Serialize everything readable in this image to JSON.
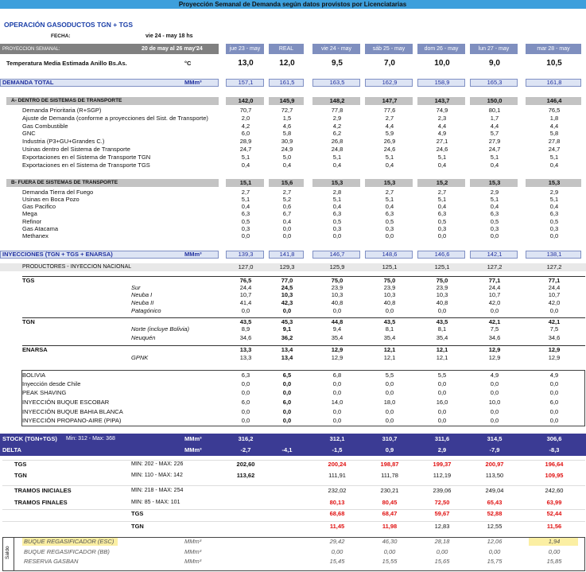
{
  "header": {
    "title": "Proyección Semanal de Demanda según datos provistos por Licenciatarias",
    "subtitle": "OPERACIÓN GASODUCTOS TGN + TGS",
    "fecha_label": "FECHA:",
    "fecha": "vie 24 - may 18 hs",
    "semana_label": "PROYECCION SEMANAL:",
    "semana": "20 de may al 26 may'24",
    "columns": [
      "jue 23 - may",
      "REAL",
      "vie 24 - may",
      "sáb 25 - may",
      "dom 26 - may",
      "lun 27 - may",
      "mar 28 - may"
    ],
    "saldo": "Saldo"
  },
  "rows": [
    {
      "label": "Temperatura Media Estimada Anillo Bs.As.",
      "unit": "°C",
      "cells": [
        "13,0",
        "12,0",
        "9,5",
        "7,0",
        "10,0",
        "9,0",
        "10,5"
      ]
    },
    {
      "label": "DEMANDA TOTAL",
      "unit": "MMm³",
      "cells": [
        "157,1",
        "161,5",
        "163,5",
        "162,9",
        "158,9",
        "165,3",
        "161,8"
      ]
    },
    {
      "label": "A- DENTRO DE SISTEMAS DE TRANSPORTE",
      "cells": [
        "142,0",
        "145,9",
        "148,2",
        "147,7",
        "143,7",
        "150,0",
        "146,4"
      ]
    },
    {
      "label": "Demanda Prioritaria (R+SGP)",
      "cells": [
        "70,7",
        "72,7",
        "77,8",
        "77,6",
        "74,9",
        "80,1",
        "76,5"
      ]
    },
    {
      "label": "Ajuste de Demanda (conforme a proyecciones del Sist. de Transporte)",
      "cells": [
        "2,0",
        "1,5",
        "2,9",
        "2,7",
        "2,3",
        "1,7",
        "1,8"
      ]
    },
    {
      "label": "Gas Combustible",
      "cells": [
        "4,2",
        "4,6",
        "4,2",
        "4,4",
        "4,4",
        "4,4",
        "4,4"
      ]
    },
    {
      "label": "GNC",
      "cells": [
        "6,0",
        "5,8",
        "6,2",
        "5,9",
        "4,9",
        "5,7",
        "5,8"
      ]
    },
    {
      "label": "Industria (P3+GU+Grandes C.)",
      "cells": [
        "28,9",
        "30,9",
        "26,8",
        "26,9",
        "27,1",
        "27,9",
        "27,8"
      ]
    },
    {
      "label": "Usinas dentro del Sistema de Transporte",
      "cells": [
        "24,7",
        "24,9",
        "24,8",
        "24,6",
        "24,6",
        "24,7",
        "24,7"
      ]
    },
    {
      "label": "Exportaciones en el Sistema de Transporte TGN",
      "cells": [
        "5,1",
        "5,0",
        "5,1",
        "5,1",
        "5,1",
        "5,1",
        "5,1"
      ]
    },
    {
      "label": "Exportaciones en el Sistema de Transporte TGS",
      "cells": [
        "0,4",
        "0,4",
        "0,4",
        "0,4",
        "0,4",
        "0,4",
        "0,4"
      ]
    },
    {
      "label": "B- FUERA DE SISTEMAS DE TRANSPORTE",
      "cells": [
        "15,1",
        "15,6",
        "15,3",
        "15,3",
        "15,2",
        "15,3",
        "15,3"
      ]
    },
    {
      "label": "Demanda Tierra del Fuego",
      "cells": [
        "2,7",
        "2,7",
        "2,8",
        "2,7",
        "2,7",
        "2,9",
        "2,9"
      ]
    },
    {
      "label": "Usinas en Boca Pozo",
      "cells": [
        "5,1",
        "5,2",
        "5,1",
        "5,1",
        "5,1",
        "5,1",
        "5,1"
      ]
    },
    {
      "label": "Gas Pacifico",
      "cells": [
        "0,4",
        "0,6",
        "0,4",
        "0,4",
        "0,4",
        "0,4",
        "0,4"
      ]
    },
    {
      "label": "Mega",
      "cells": [
        "6,3",
        "6,7",
        "6,3",
        "6,3",
        "6,3",
        "6,3",
        "6,3"
      ]
    },
    {
      "label": "Refinor",
      "cells": [
        "0,5",
        "0,4",
        "0,5",
        "0,5",
        "0,5",
        "0,5",
        "0,5"
      ]
    },
    {
      "label": "Gas Atacama",
      "cells": [
        "0,3",
        "0,0",
        "0,3",
        "0,3",
        "0,3",
        "0,3",
        "0,3"
      ]
    },
    {
      "label": "Methanex",
      "cells": [
        "0,0",
        "0,0",
        "0,0",
        "0,0",
        "0,0",
        "0,0",
        "0,0"
      ]
    },
    {
      "label": "INYECCIONES (TGN + TGS + ENARSA)",
      "unit": "MMm³",
      "cells": [
        "139,3",
        "141,8",
        "146,7",
        "148,6",
        "146,6",
        "142,1",
        "138,1"
      ]
    },
    {
      "label": "PRODUCTORES - INYECCION NACIONAL",
      "cells": [
        "127,0",
        "129,3",
        "125,9",
        "125,1",
        "125,1",
        "127,2",
        "127,2"
      ]
    },
    {
      "label": "TGS",
      "cells": [
        "76,5",
        "77,0",
        "75,0",
        "75,0",
        "75,0",
        "77,1",
        "77,1"
      ]
    },
    {
      "label": "Sur",
      "cells": [
        "24,4",
        "24,5",
        "23,9",
        "23,9",
        "23,9",
        "24,4",
        "24,4"
      ]
    },
    {
      "label": "Neuba I",
      "cells": [
        "10,7",
        "10,3",
        "10,3",
        "10,3",
        "10,3",
        "10,7",
        "10,7"
      ]
    },
    {
      "label": "Neuba II",
      "cells": [
        "41,4",
        "42,3",
        "40,8",
        "40,8",
        "40,8",
        "42,0",
        "42,0"
      ]
    },
    {
      "label": "Patagónico",
      "cells": [
        "0,0",
        "0,0",
        "0,0",
        "0,0",
        "0,0",
        "0,0",
        "0,0"
      ]
    },
    {
      "label": "TGN",
      "cells": [
        "43,5",
        "45,3",
        "44,8",
        "43,5",
        "43,5",
        "42,1",
        "42,1"
      ]
    },
    {
      "label": "Norte (incluye Bolivia)",
      "cells": [
        "8,9",
        "9,1",
        "9,4",
        "8,1",
        "8,1",
        "7,5",
        "7,5"
      ]
    },
    {
      "label": "Neuquén",
      "cells": [
        "34,6",
        "36,2",
        "35,4",
        "35,4",
        "35,4",
        "34,6",
        "34,6"
      ]
    },
    {
      "label": "ENARSA",
      "cells": [
        "13,3",
        "13,4",
        "12,9",
        "12,1",
        "12,1",
        "12,9",
        "12,9"
      ]
    },
    {
      "label": "GPNK",
      "cells": [
        "13,3",
        "13,4",
        "12,9",
        "12,1",
        "12,1",
        "12,9",
        "12,9"
      ]
    },
    {
      "label": "BOLIVIA",
      "cells": [
        "6,3",
        "6,5",
        "6,8",
        "5,5",
        "5,5",
        "4,9",
        "4,9"
      ]
    },
    {
      "label": "Inyección desde Chile",
      "cells": [
        "0,0",
        "0,0",
        "0,0",
        "0,0",
        "0,0",
        "0,0",
        "0,0"
      ]
    },
    {
      "label": "PEAK SHAVING",
      "cells": [
        "0,0",
        "0,0",
        "0,0",
        "0,0",
        "0,0",
        "0,0",
        "0,0"
      ]
    },
    {
      "label": "INYECCIÓN BUQUE ESCOBAR",
      "cells": [
        "6,0",
        "6,0",
        "14,0",
        "18,0",
        "16,0",
        "10,0",
        "6,0"
      ]
    },
    {
      "label": "INYECCIÓN BUQUE BAHIA BLANCA",
      "cells": [
        "0,0",
        "0,0",
        "0,0",
        "0,0",
        "0,0",
        "0,0",
        "0,0"
      ]
    },
    {
      "label": "INYECCIÓN PROPANO-AIRE (PIPA)",
      "cells": [
        "0,0",
        "0,0",
        "0,0",
        "0,0",
        "0,0",
        "0,0",
        "0,0"
      ]
    },
    {
      "label": "STOCK (TGN+TGS)",
      "note": "Min: 312 - Max: 368",
      "unit": "MMm³",
      "cells": [
        "316,2",
        null,
        "312,1",
        "310,7",
        "311,6",
        "314,5",
        "306,6"
      ]
    },
    {
      "label": "DELTA",
      "unit": "MMm³",
      "cells": [
        "-2,7",
        "-4,1",
        "-1,5",
        "0,9",
        "2,9",
        "-7,9",
        "-8,3"
      ]
    },
    {
      "label": "TGS",
      "note": "MIN: 202 - MAX: 226",
      "cells": [
        "202,60",
        null,
        "200,24",
        "198,87",
        "199,37",
        "200,97",
        "196,64"
      ]
    },
    {
      "label": "TGN",
      "note": "MIN: 110 - MAX: 142",
      "cells": [
        "113,62",
        null,
        "111,91",
        "111,78",
        "112,19",
        "113,50",
        "109,95"
      ]
    },
    {
      "label": "TRAMOS INICIALES",
      "note": "MIN: 218 - MAX: 254",
      "cells": [
        null,
        null,
        "232,02",
        "230,21",
        "239,06",
        "249,04",
        "242,60"
      ]
    },
    {
      "label": "TRAMOS FINALES",
      "note": "MIN: 85 - MAX: 101",
      "cells": [
        null,
        null,
        "80,13",
        "80,45",
        "72,50",
        "65,43",
        "63,99"
      ]
    },
    {
      "label": "TGS",
      "cells": [
        null,
        null,
        "68,68",
        "68,47",
        "59,67",
        "52,88",
        "52,44"
      ]
    },
    {
      "label": "TGN",
      "cells": [
        null,
        null,
        "11,45",
        "11,98",
        "12,83",
        "12,55",
        "11,56"
      ]
    },
    {
      "label": "BUQUE REGASIFICADOR (ESC)",
      "unit": "MMm³",
      "cells": [
        null,
        null,
        "29,42",
        "46,30",
        "28,18",
        "12,06",
        "1,94"
      ]
    },
    {
      "label": "BUQUE REGASIFICADOR (BB)",
      "unit": "MMm³",
      "cells": [
        null,
        null,
        "0,00",
        "0,00",
        "0,00",
        "0,00",
        "0,00"
      ]
    },
    {
      "label": "RESERVA GASBAN",
      "unit": "MMm³",
      "cells": [
        null,
        null,
        "15,45",
        "15,55",
        "15,65",
        "15,75",
        "15,85"
      ]
    }
  ]
}
